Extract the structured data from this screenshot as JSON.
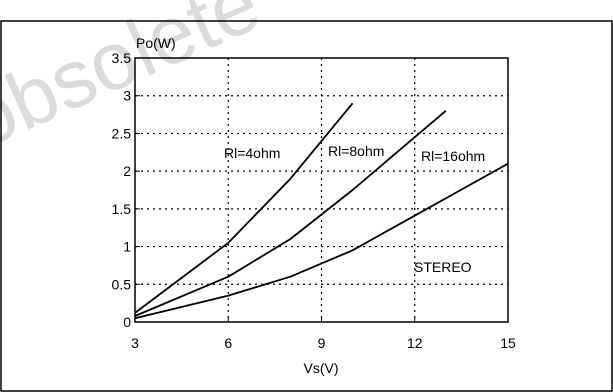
{
  "watermark": "obsolete",
  "chart_data": {
    "type": "line",
    "title": "",
    "xlabel": "Vs(V)",
    "ylabel": "Po(W)",
    "xlim": [
      3,
      15
    ],
    "ylim": [
      0,
      3.5
    ],
    "xticks": [
      3,
      6,
      9,
      12,
      15
    ],
    "xtick_labels": [
      "3",
      "6",
      "9",
      "12",
      "15"
    ],
    "yticks": [
      0,
      0.5,
      1,
      1.5,
      2,
      2.5,
      3,
      3.5
    ],
    "ytick_labels": [
      "0",
      "0.5",
      "1",
      "1.5",
      "2",
      "2.5",
      "3",
      "3.5"
    ],
    "grid": true,
    "line_color": "#000000",
    "grid_color": "#000000",
    "series": [
      {
        "name": "Rl=4ohm",
        "x": [
          3,
          6,
          8,
          10
        ],
        "y": [
          0.12,
          1.05,
          1.9,
          2.9
        ]
      },
      {
        "name": "Rl=8ohm",
        "x": [
          3,
          6,
          8,
          10,
          13
        ],
        "y": [
          0.08,
          0.6,
          1.1,
          1.75,
          2.8
        ]
      },
      {
        "name": "Rl=16ohm",
        "x": [
          3,
          6,
          8,
          10,
          15
        ],
        "y": [
          0.05,
          0.35,
          0.6,
          0.95,
          2.1
        ]
      }
    ],
    "annotations": [
      {
        "text": "Rl=4ohm",
        "series": 0
      },
      {
        "text": "Rl=8ohm",
        "series": 1
      },
      {
        "text": "Rl=16ohm",
        "series": 2
      },
      {
        "text": "STEREO"
      }
    ]
  }
}
